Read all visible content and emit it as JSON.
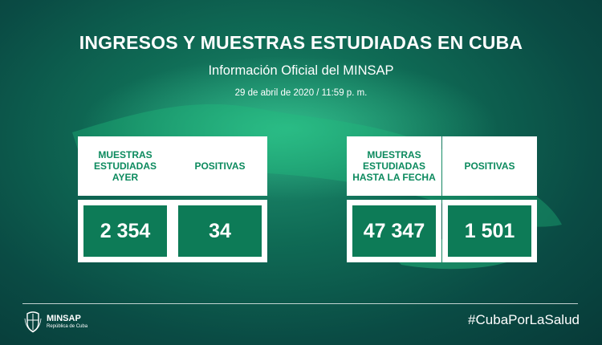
{
  "header": {
    "title": "INGRESOS Y MUESTRAS ESTUDIADAS EN CUBA",
    "subtitle": "Información Oficial del MINSAP",
    "date": "29 de abril de 2020 / 11:59 p. m."
  },
  "cards": [
    {
      "label": "MUESTRAS ESTUDIADAS AYER",
      "value": "2 354"
    },
    {
      "label": "POSITIVAS",
      "value": "34"
    },
    {
      "label": "MUESTRAS ESTUDIADAS HASTA LA FECHA",
      "value": "47 347"
    },
    {
      "label": "POSITIVAS",
      "value": "1 501"
    }
  ],
  "footer": {
    "logo_name": "MINSAP",
    "logo_sub": "República de Cuba",
    "hashtag": "#CubaPorLaSalud"
  },
  "colors": {
    "accent": "#0d7b57",
    "background": "#0a4b44"
  }
}
